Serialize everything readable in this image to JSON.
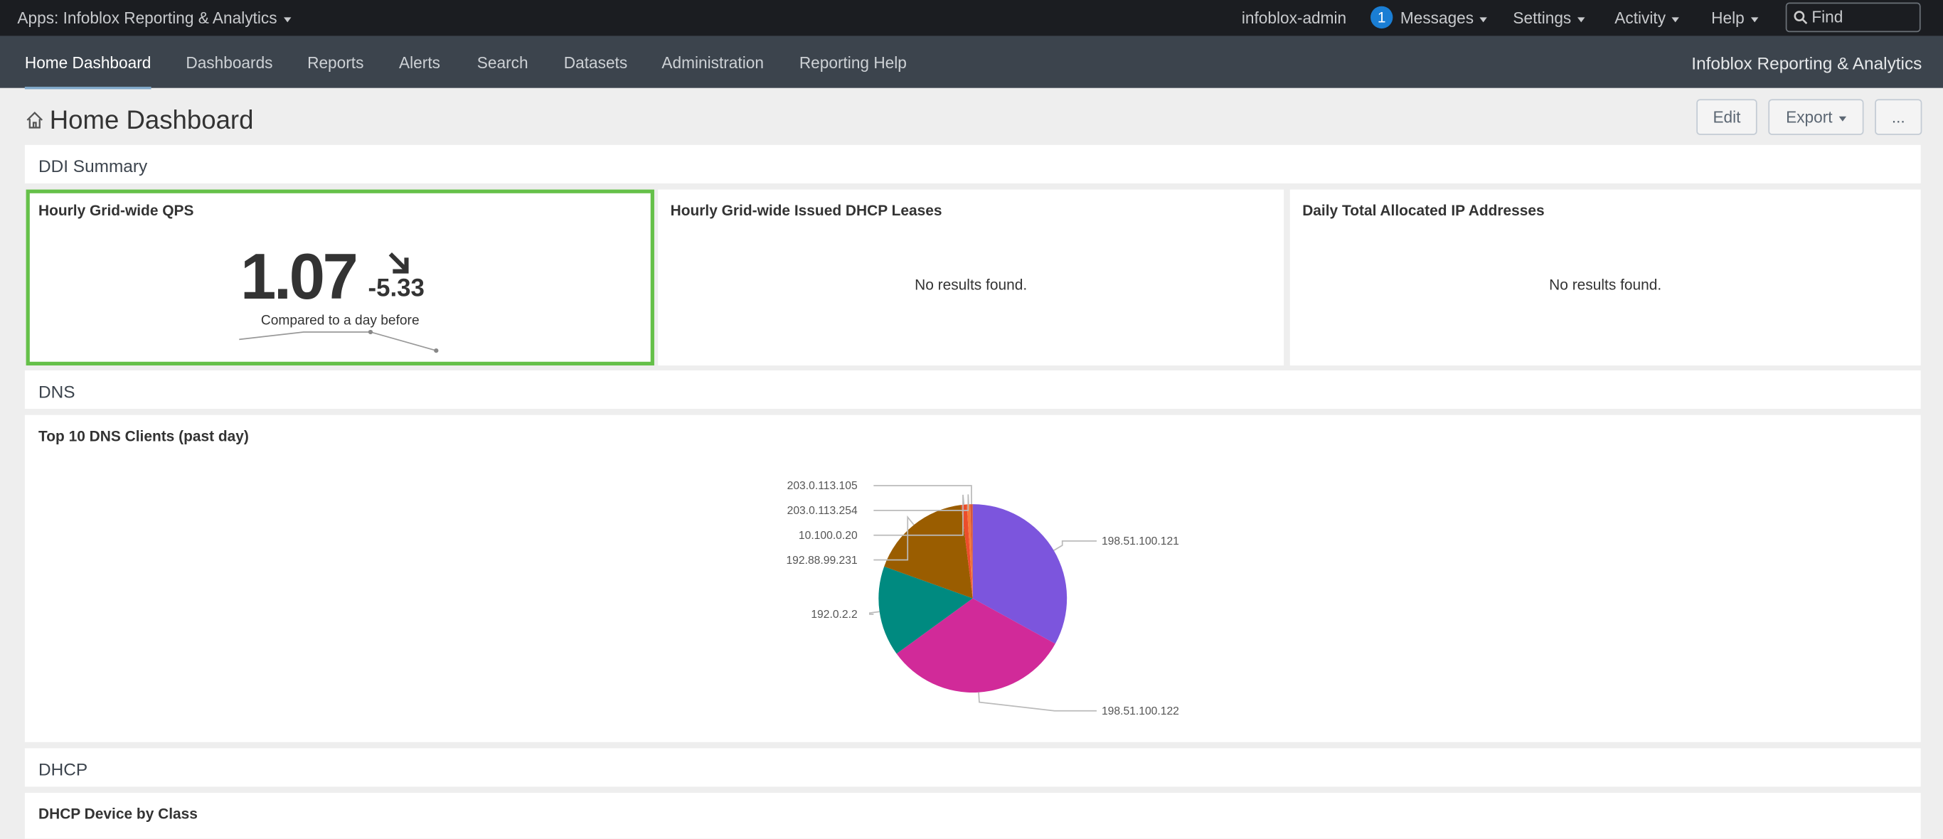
{
  "topbar": {
    "app_menu": "Apps: Infoblox Reporting & Analytics",
    "user": "infoblox-admin",
    "messages_count": 1,
    "messages": "Messages",
    "settings": "Settings",
    "activity": "Activity",
    "help": "Help",
    "find": "Find"
  },
  "nav": {
    "items": [
      "Home Dashboard",
      "Dashboards",
      "Reports",
      "Alerts",
      "Search",
      "Datasets",
      "Administration",
      "Reporting Help"
    ],
    "brand": "Infoblox Reporting & Analytics"
  },
  "dashboard": {
    "title": "Home Dashboard",
    "buttons": [
      "Edit",
      "Export",
      "..."
    ]
  },
  "sections": [
    "DDI Summary",
    "DNS",
    "DHCP"
  ],
  "panels": [
    {
      "title": "Hourly Grid-wide QPS",
      "value": "1.07",
      "delta": "-5.33",
      "caption": "Compared to a day before"
    },
    {
      "title": "Hourly Grid-wide Issued DHCP Leases",
      "message": "No results found."
    },
    {
      "title": "Daily Total Allocated IP Addresses",
      "message": "No results found."
    },
    {
      "title": "DHCP Device by Class"
    }
  ],
  "chart_data": {
    "type": "pie",
    "title": "Top 10 DNS Clients (past day)",
    "categories": [
      "198.51.100.121",
      "198.51.100.122",
      "192.0.2.2",
      "192.88.99.231",
      "10.100.0.20",
      "203.0.113.254",
      "203.0.113.105"
    ],
    "values": [
      33,
      32,
      15.5,
      17.5,
      1,
      0.6,
      0.4
    ],
    "colors": [
      "#7c55dd",
      "#d12a99",
      "#008a80",
      "#9a5d00",
      "#ec4d2b",
      "#f4793a",
      "#d6563c"
    ]
  }
}
